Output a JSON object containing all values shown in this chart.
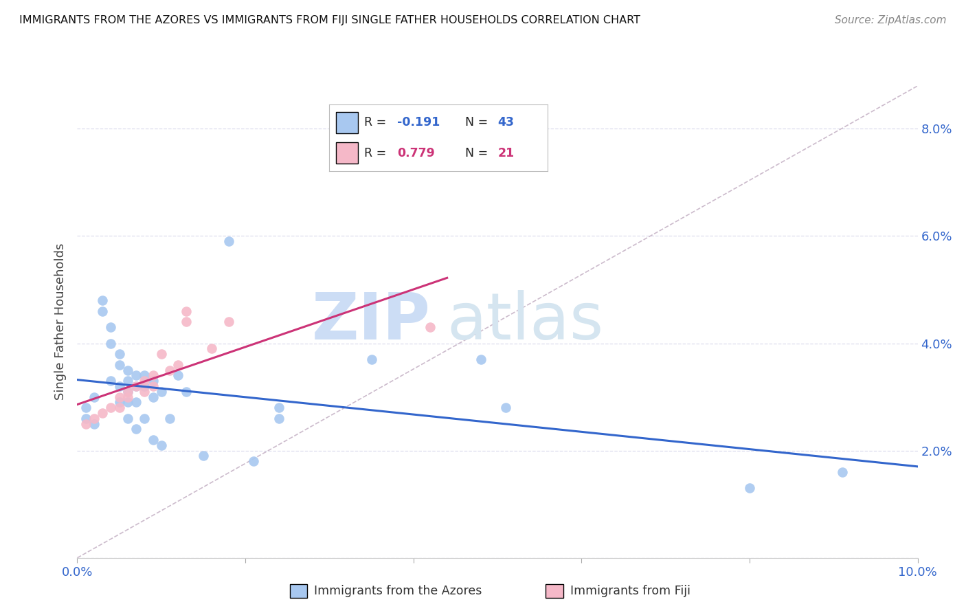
{
  "title": "IMMIGRANTS FROM THE AZORES VS IMMIGRANTS FROM FIJI SINGLE FATHER HOUSEHOLDS CORRELATION CHART",
  "source": "Source: ZipAtlas.com",
  "ylabel": "Single Father Households",
  "xlim": [
    0.0,
    0.1
  ],
  "ylim": [
    0.0,
    0.088
  ],
  "legend_R1": "-0.191",
  "legend_N1": "43",
  "legend_R2": "0.779",
  "legend_N2": "21",
  "azores_color": "#a8c8f0",
  "fiji_color": "#f5b8c8",
  "azores_line_color": "#3366cc",
  "fiji_line_color": "#cc3377",
  "dashed_line_color": "#ccbbcc",
  "background_color": "#ffffff",
  "grid_color": "#ddddee",
  "tick_color": "#3366cc",
  "azores_x": [
    0.001,
    0.001,
    0.002,
    0.002,
    0.003,
    0.003,
    0.004,
    0.004,
    0.004,
    0.005,
    0.005,
    0.005,
    0.005,
    0.006,
    0.006,
    0.006,
    0.006,
    0.006,
    0.007,
    0.007,
    0.007,
    0.007,
    0.008,
    0.008,
    0.008,
    0.009,
    0.009,
    0.009,
    0.01,
    0.01,
    0.011,
    0.012,
    0.013,
    0.015,
    0.018,
    0.021,
    0.024,
    0.024,
    0.035,
    0.048,
    0.051,
    0.08,
    0.091
  ],
  "azores_y": [
    0.028,
    0.026,
    0.03,
    0.025,
    0.048,
    0.046,
    0.043,
    0.04,
    0.033,
    0.038,
    0.036,
    0.032,
    0.029,
    0.035,
    0.033,
    0.031,
    0.029,
    0.026,
    0.034,
    0.032,
    0.029,
    0.024,
    0.034,
    0.032,
    0.026,
    0.033,
    0.03,
    0.022,
    0.031,
    0.021,
    0.026,
    0.034,
    0.031,
    0.019,
    0.059,
    0.018,
    0.028,
    0.026,
    0.037,
    0.037,
    0.028,
    0.013,
    0.016
  ],
  "fiji_x": [
    0.001,
    0.002,
    0.003,
    0.004,
    0.005,
    0.005,
    0.006,
    0.006,
    0.007,
    0.008,
    0.008,
    0.009,
    0.009,
    0.01,
    0.011,
    0.012,
    0.013,
    0.013,
    0.016,
    0.018,
    0.042
  ],
  "fiji_y": [
    0.025,
    0.026,
    0.027,
    0.028,
    0.03,
    0.028,
    0.031,
    0.03,
    0.032,
    0.033,
    0.031,
    0.034,
    0.032,
    0.038,
    0.035,
    0.036,
    0.046,
    0.044,
    0.039,
    0.044,
    0.043
  ]
}
